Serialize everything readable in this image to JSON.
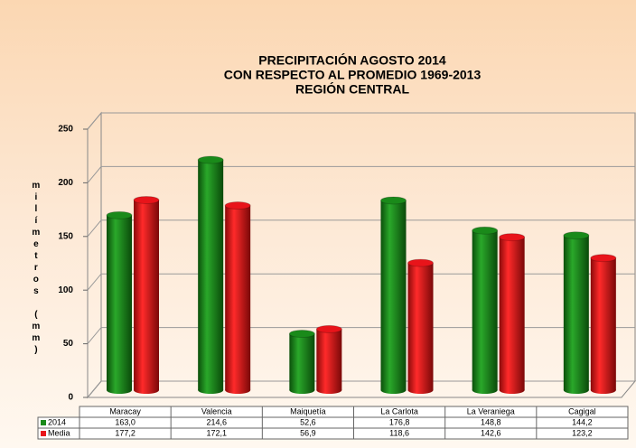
{
  "chart_data": {
    "type": "bar3d",
    "title": [
      "PRECIPITACIÓN AGOSTO 2014",
      "CON RESPECTO AL PROMEDIO 1969-2013",
      "REGIÓN CENTRAL"
    ],
    "y_label": "milímetros (mm)",
    "categories": [
      "Maracay",
      "Valencia",
      "Maiquetía",
      "La Carlota",
      "La Veraniega",
      "Cagigal"
    ],
    "series": [
      {
        "name": "2014",
        "color": "#1a8a1a",
        "values": [
          163.0,
          214.6,
          52.6,
          176.8,
          148.8,
          144.2
        ],
        "value_labels": [
          "163,0",
          "214,6",
          "52,6",
          "176,8",
          "148,8",
          "144,2"
        ]
      },
      {
        "name": "Media",
        "color": "#e8141a",
        "values": [
          177.2,
          172.1,
          56.9,
          118.6,
          142.6,
          123.2
        ],
        "value_labels": [
          "177,2",
          "172,1",
          "56,9",
          "118,6",
          "142,6",
          "123,2"
        ]
      }
    ],
    "ylim": [
      0,
      250
    ],
    "yticks": [
      0,
      50,
      100,
      150,
      200,
      250
    ],
    "grid": true
  }
}
